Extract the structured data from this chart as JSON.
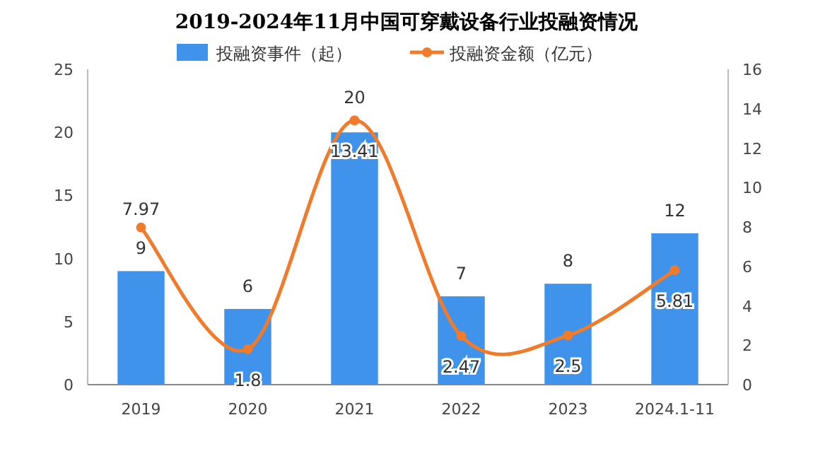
{
  "chart_data": {
    "type": "bar",
    "title": "2019-2024年11月中国可穿戴设备行业投融资情况",
    "categories": [
      "2019",
      "2020",
      "2021",
      "2022",
      "2023",
      "2024.1-11"
    ],
    "series": [
      {
        "name": "投融资事件（起）",
        "color": "#3f93ea",
        "values": [
          9,
          6,
          20,
          7,
          8,
          12
        ]
      },
      {
        "name": "投融资金额（亿元）",
        "type": "line",
        "axis": "y2",
        "color": "#f07b2a",
        "values": [
          7.97,
          1.8,
          13.41,
          2.47,
          2.5,
          5.81
        ]
      }
    ],
    "ylim": [
      0,
      25
    ],
    "yticks": [
      0,
      5,
      10,
      15,
      20,
      25
    ],
    "y2lim": [
      0,
      16
    ],
    "y2ticks": [
      0,
      2,
      4,
      6,
      8,
      10,
      12,
      14,
      16
    ],
    "data_labels": true,
    "legend": "top",
    "grid": false,
    "marker": "circle",
    "line_style": "solid"
  }
}
